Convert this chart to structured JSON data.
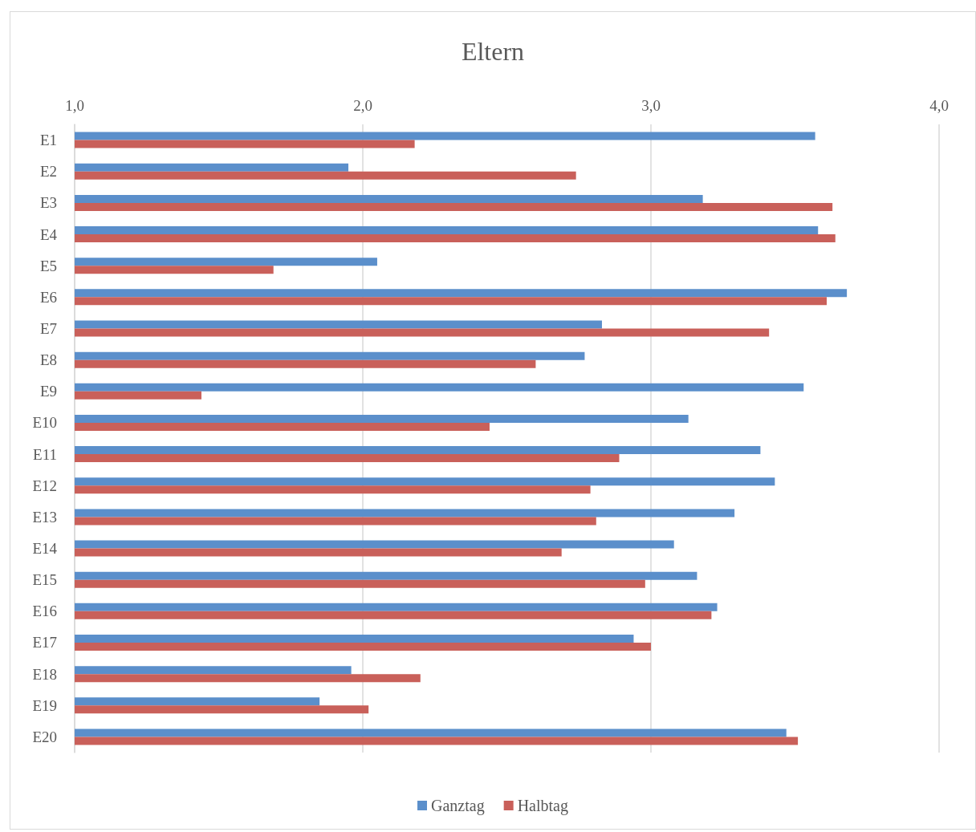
{
  "chart_data": {
    "type": "bar",
    "orientation": "horizontal",
    "title": "Eltern",
    "categories": [
      "E1",
      "E2",
      "E3",
      "E4",
      "E5",
      "E6",
      "E7",
      "E8",
      "E9",
      "E10",
      "E11",
      "E12",
      "E13",
      "E14",
      "E15",
      "E16",
      "E17",
      "E18",
      "E19",
      "E20"
    ],
    "series": [
      {
        "name": "Ganztag",
        "color": "#5b8fcb",
        "values": [
          3.57,
          1.95,
          3.18,
          3.58,
          2.05,
          3.68,
          2.83,
          2.77,
          3.53,
          3.13,
          3.38,
          3.43,
          3.29,
          3.08,
          3.16,
          3.23,
          2.94,
          1.96,
          1.85,
          3.47
        ]
      },
      {
        "name": "Halbtag",
        "color": "#c9605a",
        "values": [
          2.18,
          2.74,
          3.63,
          3.64,
          1.69,
          3.61,
          3.41,
          2.6,
          1.44,
          2.44,
          2.89,
          2.79,
          2.81,
          2.69,
          2.98,
          3.21,
          3.0,
          2.2,
          2.02,
          3.51
        ]
      }
    ],
    "xlim": [
      1,
      4
    ],
    "xticks": [
      {
        "value": 1,
        "label": "1,0"
      },
      {
        "value": 2,
        "label": "2,0"
      },
      {
        "value": 3,
        "label": "3,0"
      },
      {
        "value": 4,
        "label": "4,0"
      }
    ],
    "grid": "x",
    "legend": "bottom"
  }
}
